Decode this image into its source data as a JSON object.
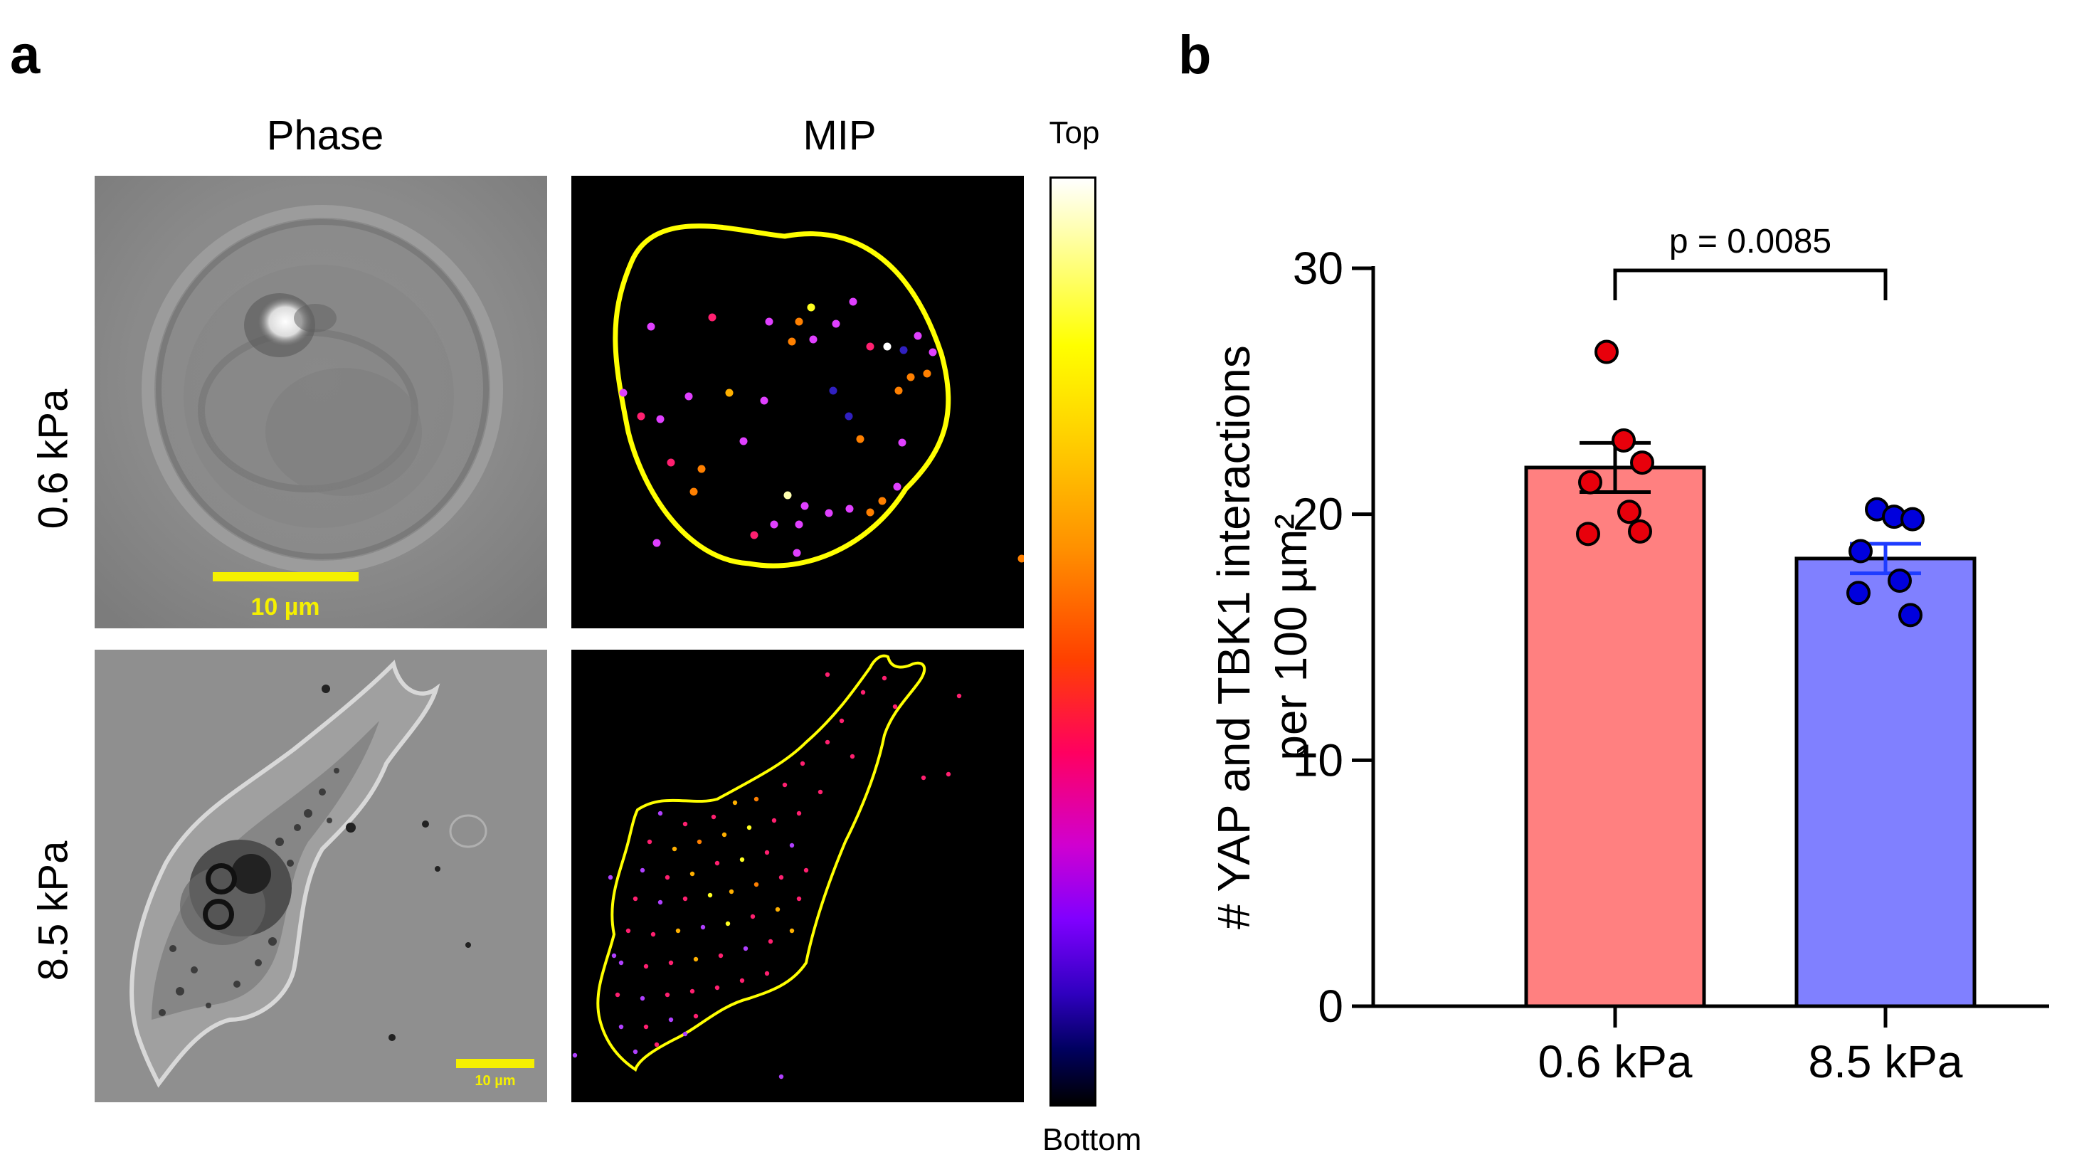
{
  "panels": {
    "a": {
      "letter": "a",
      "columns": [
        "Phase",
        "MIP"
      ],
      "rows": [
        "0.6 kPa",
        "8.5 kPa"
      ],
      "scalebar_top": "10 µm",
      "scalebar_bottom": "10 µm",
      "colorbar": {
        "top": "Top",
        "bottom": "Bottom"
      }
    },
    "b": {
      "letter": "b"
    }
  },
  "colors": {
    "bar1": "#ff8080",
    "bar2": "#8080ff",
    "dot1": "#e8000b",
    "dot2": "#0000dd",
    "errbar2": "#1e3cff",
    "outline": "#ffff00",
    "scalebar": "#f5f000"
  },
  "chart_data": {
    "type": "bar",
    "categories": [
      "0.6 kPa",
      "8.5 kPa"
    ],
    "values": [
      21.9,
      18.2
    ],
    "sem": [
      1.0,
      0.6
    ],
    "points": [
      [
        26.6,
        23.0,
        22.1,
        21.3,
        20.1,
        19.2,
        19.3
      ],
      [
        20.2,
        19.9,
        19.8,
        18.5,
        17.3,
        16.8,
        15.9
      ]
    ],
    "ylabel_line1": "# YAP and TBK1 interactions",
    "ylabel_line2": "per 100 µm²",
    "yticks": [
      "0",
      "10",
      "20",
      "30"
    ],
    "ylim": [
      0,
      30
    ],
    "annotation": "p = 0.0085"
  }
}
